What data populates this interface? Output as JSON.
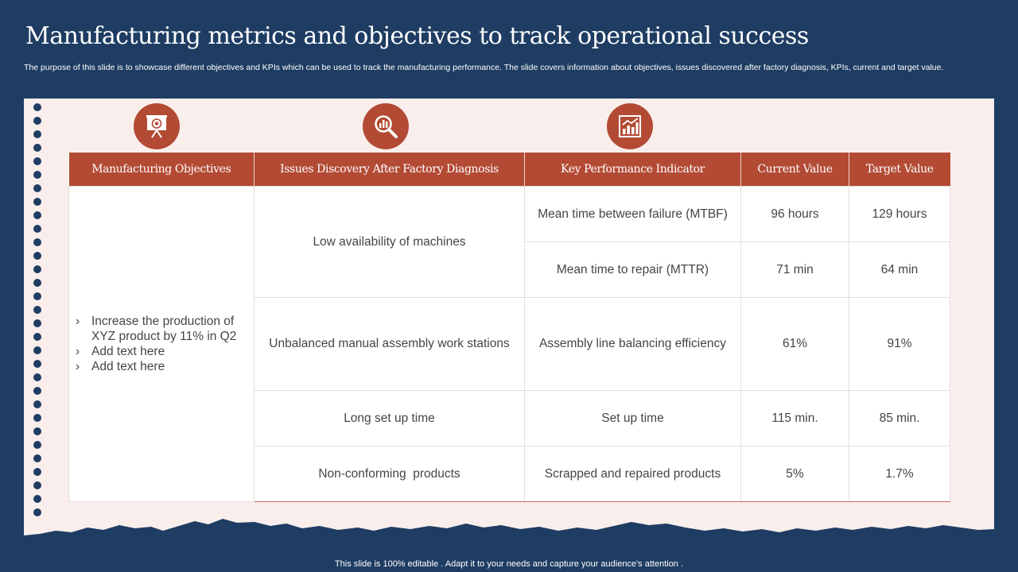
{
  "title": "Manufacturing metrics and objectives to track operational success",
  "subtitle": "The purpose of this slide is to showcase different objectives and KPIs which can be used to track the manufacturing performance. The slide covers information about objectives, issues discovered after factory diagnosis, KPIs, current and target value.",
  "icons": [
    "presentation-target-icon",
    "magnifier-chart-icon",
    "growth-chart-icon"
  ],
  "colors": {
    "background": "#1f3d63",
    "accent": "#b34a34",
    "paper": "#f9eeec"
  },
  "table": {
    "headers": [
      "Manufacturing Objectives",
      "Issues Discovery After Factory Diagnosis",
      "Key Performance Indicator",
      "Current Value",
      "Target Value"
    ],
    "objectives": [
      "Increase the production of XYZ product by 11% in Q2",
      "Add text here",
      "Add text here"
    ],
    "issues": [
      "Low availability of machines",
      "Unbalanced manual assembly work stations",
      "Long set up time",
      "Non-conforming  products"
    ],
    "rows": [
      {
        "kpi": "Mean time between failure (MTBF)",
        "current": "96 hours",
        "target": "129 hours"
      },
      {
        "kpi": "Mean time to repair (MTTR)",
        "current": "71 min",
        "target": "64 min"
      },
      {
        "kpi": "Assembly line balancing efficiency",
        "current": "61%",
        "target": "91%"
      },
      {
        "kpi": "Set up time",
        "current": "115 min.",
        "target": "85 min."
      },
      {
        "kpi": "Scrapped and repaired products",
        "current": "5%",
        "target": "1.7%"
      }
    ]
  },
  "footer": "This slide is 100% editable . Adapt it to your needs and capture your audience's attention ."
}
